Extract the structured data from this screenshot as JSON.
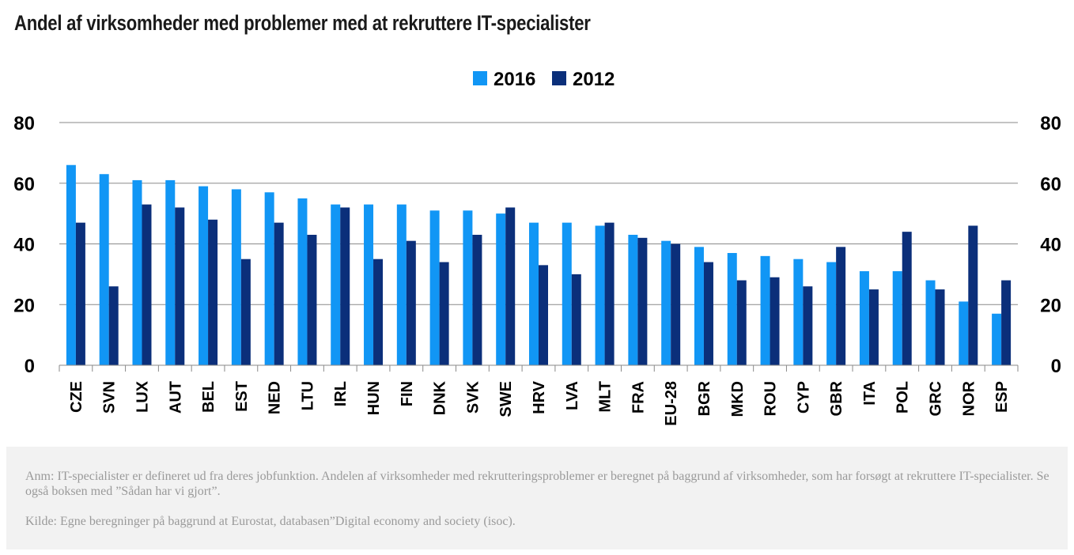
{
  "title": "Andel af virksomheder med problemer med at rekruttere IT-specialister",
  "colors": {
    "series_2016": "#1196f5",
    "series_2012": "#0b2f7a",
    "gridline": "#8a8a8a"
  },
  "chart_data": {
    "type": "bar",
    "categories": [
      "CZE",
      "SVN",
      "LUX",
      "AUT",
      "BEL",
      "EST",
      "NED",
      "LTU",
      "IRL",
      "HUN",
      "FIN",
      "DNK",
      "SVK",
      "SWE",
      "HRV",
      "LVA",
      "MLT",
      "FRA",
      "EU-28",
      "BGR",
      "MKD",
      "ROU",
      "CYP",
      "GBR",
      "ITA",
      "POL",
      "GRC",
      "NOR",
      "ESP"
    ],
    "series": [
      {
        "name": "2016",
        "values": [
          66,
          63,
          61,
          61,
          59,
          58,
          57,
          55,
          53,
          53,
          53,
          51,
          51,
          50,
          47,
          47,
          46,
          43,
          41,
          39,
          37,
          36,
          35,
          34,
          31,
          31,
          28,
          21,
          17
        ]
      },
      {
        "name": "2012",
        "values": [
          47,
          26,
          53,
          52,
          48,
          35,
          47,
          43,
          52,
          35,
          41,
          34,
          43,
          52,
          33,
          30,
          47,
          42,
          40,
          34,
          28,
          29,
          26,
          39,
          25,
          44,
          25,
          46,
          28
        ]
      }
    ],
    "ylim": [
      0,
      80
    ],
    "yticks": [
      0,
      20,
      40,
      60,
      80
    ],
    "grid": true,
    "legend_position": "top-center",
    "secondary_axis": "mirrored"
  },
  "notes": {
    "anm": "Anm: IT-specialister er defineret ud fra deres jobfunktion. Andelen af virksomheder med rekrutteringsproblemer er beregnet på baggrund af virksomheder, som har forsøgt at rekruttere IT-specialister. Se også boksen med ”Sådan har vi gjort”.",
    "kilde": "Kilde: Egne beregninger på baggrund at Eurostat, databasen”Digital economy and society (isoc)."
  }
}
